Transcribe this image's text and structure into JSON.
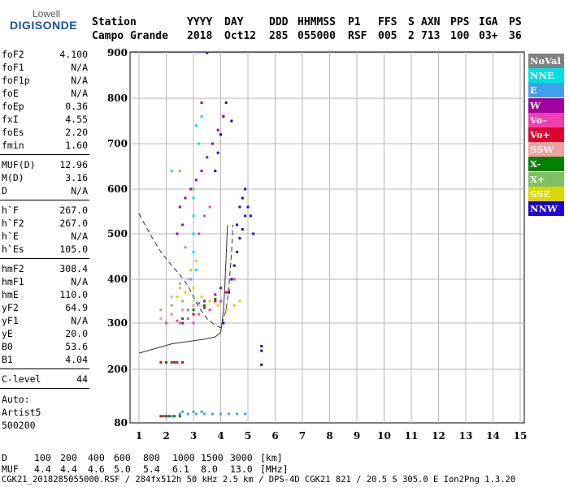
{
  "logo": {
    "line1": "Lowell",
    "line2": "DIGISONDE"
  },
  "header": {
    "row1": [
      "Station",
      "YYYY",
      "DAY",
      "DDD",
      "HHMMSS",
      "P1",
      "FFS",
      "S",
      "AXN",
      "PPS",
      "IGA",
      "PS"
    ],
    "row2": [
      "Campo Grande",
      "2018",
      "Oct12",
      "285",
      "055000",
      "RSF",
      "005",
      "2",
      "713",
      "100",
      "03+",
      "36"
    ]
  },
  "params": [
    {
      "name": "foF2",
      "value": "4.100"
    },
    {
      "name": "foF1",
      "value": "N/A"
    },
    {
      "name": "foF1p",
      "value": "N/A"
    },
    {
      "name": "foE",
      "value": "N/A"
    },
    {
      "name": "foEp",
      "value": "0.36"
    },
    {
      "name": "fxI",
      "value": "4.55"
    },
    {
      "name": "foEs",
      "value": "2.20"
    },
    {
      "name": "fmin",
      "value": "1.60"
    },
    {
      "name": "MUF(D)",
      "value": "12.96"
    },
    {
      "name": "M(D)",
      "value": "3.16"
    },
    {
      "name": "D",
      "value": "N/A"
    },
    {
      "name": "h`F",
      "value": "267.0"
    },
    {
      "name": "h`F2",
      "value": "267.0"
    },
    {
      "name": "h`E",
      "value": "N/A"
    },
    {
      "name": "h`Es",
      "value": "105.0"
    },
    {
      "name": "hmF2",
      "value": "308.4"
    },
    {
      "name": "hmF1",
      "value": "N/A"
    },
    {
      "name": "hmE",
      "value": "110.0"
    },
    {
      "name": "yF2",
      "value": "64.9"
    },
    {
      "name": "yF1",
      "value": "N/A"
    },
    {
      "name": "yE",
      "value": "20.0"
    },
    {
      "name": "B0",
      "value": "53.6"
    },
    {
      "name": "B1",
      "value": "4.04"
    },
    {
      "name": "C-level",
      "value": "44"
    }
  ],
  "auto": {
    "line1": "Auto:",
    "line2": "Artist5",
    "line3": "500200"
  },
  "footer": {
    "d_label": "D",
    "d_values": [
      "100",
      "200",
      "400",
      "600",
      "800",
      "1000",
      "1500",
      "3000",
      "[km]"
    ],
    "muf_label": "MUF",
    "muf_values": [
      "4.4",
      "4.4",
      "4.6",
      "5.0",
      "5.4",
      "6.1",
      "8.0",
      "13.0",
      "[MHz]"
    ],
    "info": "CGK21_2018285055000.RSF / 284fx512h 50 kHz 2.5 km / DPS-4D CGK21 821 / 20.5 S 305.0 E Ion2Png 1.3.20"
  },
  "legend": [
    {
      "label": "NoVal",
      "color": "#808080"
    },
    {
      "label": "NNE",
      "color": "#00e0e0"
    },
    {
      "label": "E",
      "color": "#40a0f0"
    },
    {
      "label": "W",
      "color": "#a000a0"
    },
    {
      "label": "Vo-",
      "color": "#f040b0"
    },
    {
      "label": "Vo+",
      "color": "#e00030"
    },
    {
      "label": "SSW",
      "color": "#f0a0a0"
    },
    {
      "label": "X-",
      "color": "#008000"
    },
    {
      "label": "X+",
      "color": "#80c060"
    },
    {
      "label": "SSE",
      "color": "#d8d800"
    },
    {
      "label": "NNW",
      "color": "#2000d0"
    }
  ],
  "chart_data": {
    "type": "scatter",
    "xlim": [
      1,
      15
    ],
    "ylim": [
      80,
      900
    ],
    "x_ticks": [
      1,
      2,
      3,
      4,
      5,
      6,
      7,
      8,
      9,
      10,
      11,
      12,
      13,
      14,
      15
    ],
    "y_ticks": [
      80,
      200,
      300,
      400,
      500,
      600,
      700,
      800,
      900
    ],
    "grid": true,
    "legend_position": "right",
    "series": [
      {
        "name": "NNW",
        "color": "#2000d0",
        "points": [
          [
            4.1,
            300
          ],
          [
            4.2,
            330
          ],
          [
            4.3,
            370
          ],
          [
            4.4,
            400
          ],
          [
            4.5,
            430
          ],
          [
            4.6,
            460
          ],
          [
            4.7,
            490
          ],
          [
            4.8,
            510
          ],
          [
            4.9,
            540
          ],
          [
            5.0,
            560
          ],
          [
            5.1,
            540
          ],
          [
            5.2,
            500
          ],
          [
            4.8,
            580
          ],
          [
            4.9,
            600
          ],
          [
            4.6,
            520
          ],
          [
            4.7,
            560
          ],
          [
            3.8,
            640
          ],
          [
            3.9,
            680
          ],
          [
            4.0,
            720
          ],
          [
            4.1,
            760
          ],
          [
            4.2,
            790
          ],
          [
            4.4,
            750
          ],
          [
            5.5,
            210
          ],
          [
            5.5,
            240
          ],
          [
            5.5,
            250
          ],
          [
            3.5,
            900
          ]
        ]
      },
      {
        "name": "W",
        "color": "#a000a0",
        "points": [
          [
            2.5,
            560
          ],
          [
            2.7,
            580
          ],
          [
            2.9,
            600
          ],
          [
            3.1,
            620
          ],
          [
            3.3,
            640
          ],
          [
            3.5,
            670
          ],
          [
            3.7,
            700
          ],
          [
            3.9,
            730
          ],
          [
            4.1,
            760
          ],
          [
            2.2,
            320
          ],
          [
            2.6,
            330
          ],
          [
            3.0,
            340
          ],
          [
            3.4,
            350
          ],
          [
            3.8,
            365
          ],
          [
            4.0,
            380
          ],
          [
            2.4,
            500
          ],
          [
            2.6,
            520
          ],
          [
            3.3,
            790
          ]
        ]
      },
      {
        "name": "Vo-",
        "color": "#f040b0",
        "points": [
          [
            2.0,
            300
          ],
          [
            2.4,
            305
          ],
          [
            2.8,
            310
          ],
          [
            3.2,
            320
          ],
          [
            3.6,
            330
          ],
          [
            4.0,
            350
          ],
          [
            4.3,
            375
          ],
          [
            4.5,
            400
          ],
          [
            3.2,
            500
          ],
          [
            3.4,
            540
          ],
          [
            3.6,
            560
          ],
          [
            3.0,
            300
          ]
        ]
      },
      {
        "name": "Vo+",
        "color": "#e00030",
        "points": [
          [
            1.8,
            215
          ],
          [
            2.0,
            215
          ],
          [
            2.2,
            215
          ],
          [
            2.4,
            215
          ],
          [
            2.6,
            215
          ],
          [
            1.8,
            95
          ],
          [
            2.0,
            95
          ],
          [
            2.2,
            95
          ],
          [
            2.6,
            300
          ],
          [
            3.0,
            320
          ],
          [
            3.4,
            335
          ],
          [
            3.8,
            350
          ],
          [
            4.2,
            370
          ]
        ]
      },
      {
        "name": "NNE",
        "color": "#00e0e0",
        "points": [
          [
            2.2,
            640
          ],
          [
            3.0,
            460
          ],
          [
            3.0,
            500
          ],
          [
            3.0,
            540
          ],
          [
            3.0,
            580
          ],
          [
            3.1,
            740
          ],
          [
            3.2,
            700
          ],
          [
            3.3,
            760
          ],
          [
            2.9,
            400
          ],
          [
            3.1,
            420
          ]
        ]
      },
      {
        "name": "E",
        "color": "#40a0f0",
        "points": [
          [
            2.5,
            100
          ],
          [
            2.8,
            100
          ],
          [
            3.1,
            100
          ],
          [
            3.4,
            100
          ],
          [
            3.7,
            100
          ],
          [
            4.0,
            100
          ],
          [
            4.3,
            100
          ],
          [
            4.6,
            100
          ],
          [
            4.9,
            100
          ],
          [
            2.2,
            95
          ],
          [
            2.6,
            105
          ],
          [
            3.0,
            105
          ],
          [
            3.3,
            105
          ]
        ]
      },
      {
        "name": "SSW",
        "color": "#f0a0a0",
        "points": [
          [
            1.8,
            310
          ],
          [
            2.2,
            320
          ],
          [
            2.6,
            330
          ],
          [
            3.0,
            340
          ],
          [
            2.2,
            360
          ],
          [
            2.5,
            380
          ],
          [
            2.8,
            400
          ]
        ]
      },
      {
        "name": "X-",
        "color": "#008000",
        "points": [
          [
            1.9,
            95
          ],
          [
            2.1,
            95
          ],
          [
            2.3,
            95
          ],
          [
            2.5,
            95
          ],
          [
            2.0,
            215
          ],
          [
            2.3,
            215
          ],
          [
            2.6,
            310
          ],
          [
            3.0,
            330
          ],
          [
            3.4,
            340
          ],
          [
            3.8,
            355
          ]
        ]
      },
      {
        "name": "X+",
        "color": "#80c060",
        "points": [
          [
            1.8,
            330
          ],
          [
            2.2,
            340
          ],
          [
            2.6,
            350
          ],
          [
            3.0,
            360
          ],
          [
            2.5,
            390
          ],
          [
            2.9,
            420
          ],
          [
            2.7,
            470
          ],
          [
            3.0,
            600
          ],
          [
            2.5,
            640
          ]
        ]
      },
      {
        "name": "SSE",
        "color": "#d8d800",
        "points": [
          [
            2.4,
            360
          ],
          [
            2.7,
            370
          ],
          [
            3.0,
            380
          ],
          [
            3.3,
            360
          ],
          [
            3.6,
            350
          ],
          [
            3.9,
            340
          ],
          [
            4.2,
            330
          ],
          [
            4.5,
            340
          ],
          [
            4.7,
            350
          ],
          [
            2.9,
            420
          ],
          [
            3.1,
            440
          ]
        ]
      },
      {
        "name": "NoVal",
        "color": "#808080",
        "points": [
          [
            2.8,
            330
          ],
          [
            3.2,
            345
          ],
          [
            2.5,
            300
          ]
        ]
      }
    ],
    "profile_curve": [
      [
        1.0,
        545
      ],
      [
        1.4,
        500
      ],
      [
        1.8,
        460
      ],
      [
        2.2,
        430
      ],
      [
        2.5,
        410
      ],
      [
        2.8,
        385
      ],
      [
        3.0,
        360
      ],
      [
        3.2,
        335
      ],
      [
        3.5,
        310
      ],
      [
        3.8,
        295
      ],
      [
        4.0,
        290
      ],
      [
        4.2,
        330
      ],
      [
        4.3,
        380
      ],
      [
        4.35,
        420
      ],
      [
        4.4,
        460
      ],
      [
        4.45,
        520
      ]
    ],
    "trace_curve": [
      [
        1.0,
        235
      ],
      [
        1.6,
        245
      ],
      [
        2.2,
        255
      ],
      [
        2.8,
        260
      ],
      [
        3.4,
        265
      ],
      [
        3.8,
        270
      ],
      [
        4.0,
        280
      ],
      [
        4.05,
        300
      ],
      [
        4.1,
        330
      ],
      [
        4.15,
        380
      ],
      [
        4.2,
        450
      ],
      [
        4.25,
        520
      ]
    ]
  }
}
